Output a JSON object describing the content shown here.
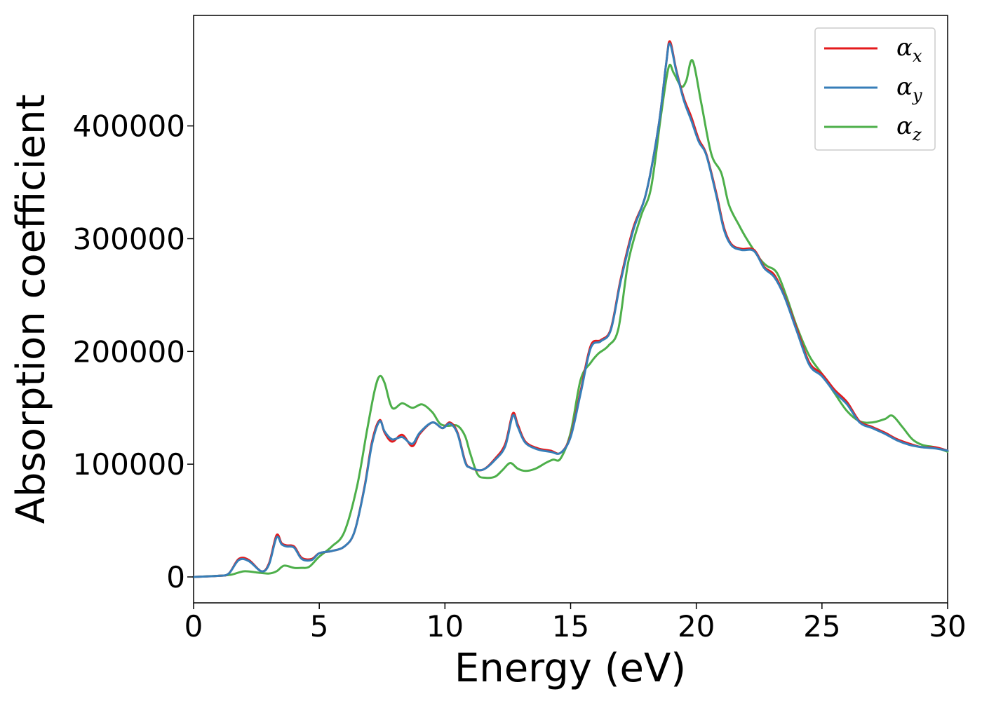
{
  "chart_data": {
    "type": "line",
    "xlabel": "Energy (eV)",
    "ylabel": "Absorption coefficient",
    "xlim": [
      0,
      30
    ],
    "ylim": [
      -23000,
      498000
    ],
    "xticks": [
      "0",
      "5",
      "10",
      "15",
      "20",
      "25",
      "30"
    ],
    "yticks": [
      "0",
      "100000",
      "200000",
      "300000",
      "400000"
    ],
    "grid": false,
    "legend_position": "top-right",
    "series": [
      {
        "name": "α",
        "subscript": "x",
        "color": "#e41a1c",
        "x": [
          0,
          1.0,
          1.4,
          1.8,
          2.2,
          2.7,
          3.0,
          3.3,
          3.5,
          3.7,
          4.0,
          4.3,
          4.7,
          5.0,
          5.5,
          6.0,
          6.4,
          6.8,
          7.1,
          7.4,
          7.6,
          7.9,
          8.3,
          8.7,
          9.0,
          9.5,
          9.9,
          10.2,
          10.5,
          10.8,
          11.0,
          11.5,
          12.0,
          12.4,
          12.7,
          12.9,
          13.2,
          13.7,
          14.2,
          14.6,
          15.0,
          15.4,
          15.8,
          16.2,
          16.6,
          17.0,
          17.5,
          18.0,
          18.5,
          18.8,
          18.95,
          19.2,
          19.5,
          19.8,
          20.1,
          20.4,
          20.8,
          21.1,
          21.4,
          21.8,
          22.3,
          22.7,
          23.1,
          23.5,
          24.0,
          24.5,
          25.0,
          25.5,
          26.0,
          26.5,
          27.0,
          27.5,
          28.0,
          28.5,
          29.0,
          29.5,
          30.0
        ],
        "values": [
          0,
          1000,
          3000,
          16000,
          15000,
          5000,
          12000,
          37000,
          30000,
          28000,
          27000,
          17000,
          16000,
          21000,
          23000,
          27000,
          40000,
          80000,
          120000,
          139000,
          128000,
          120000,
          126000,
          116000,
          127000,
          137000,
          132000,
          137000,
          128000,
          103000,
          97000,
          95000,
          105000,
          118000,
          145000,
          135000,
          120000,
          114000,
          112000,
          110000,
          125000,
          165000,
          205000,
          210000,
          220000,
          265000,
          310000,
          340000,
          400000,
          455000,
          475000,
          450000,
          425000,
          408000,
          388000,
          375000,
          340000,
          310000,
          295000,
          291000,
          290000,
          275000,
          268000,
          250000,
          220000,
          190000,
          180000,
          166000,
          155000,
          138000,
          133000,
          128000,
          122000,
          118000,
          115000,
          115000,
          112000
        ]
      },
      {
        "name": "α",
        "subscript": "y",
        "color": "#377eb8",
        "x": [
          0,
          1.0,
          1.4,
          1.8,
          2.2,
          2.7,
          3.0,
          3.3,
          3.5,
          3.7,
          4.0,
          4.3,
          4.7,
          5.0,
          5.5,
          6.0,
          6.4,
          6.8,
          7.1,
          7.4,
          7.6,
          7.9,
          8.3,
          8.7,
          9.0,
          9.5,
          9.9,
          10.2,
          10.5,
          10.8,
          11.0,
          11.5,
          12.0,
          12.4,
          12.7,
          12.9,
          13.2,
          13.7,
          14.2,
          14.6,
          15.0,
          15.4,
          15.8,
          16.2,
          16.6,
          17.0,
          17.5,
          18.0,
          18.5,
          18.8,
          18.95,
          19.2,
          19.5,
          19.8,
          20.1,
          20.4,
          20.8,
          21.1,
          21.4,
          21.8,
          22.3,
          22.7,
          23.1,
          23.5,
          24.0,
          24.5,
          25.0,
          25.5,
          26.0,
          26.5,
          27.0,
          27.5,
          28.0,
          28.5,
          29.0,
          29.5,
          30.0
        ],
        "values": [
          0,
          1000,
          3000,
          15000,
          14000,
          5000,
          11000,
          35000,
          29000,
          27000,
          26000,
          16000,
          15000,
          21000,
          23000,
          27000,
          40000,
          79000,
          118000,
          138000,
          129000,
          122000,
          124000,
          118000,
          128000,
          137000,
          132000,
          136000,
          127000,
          102000,
          97000,
          95000,
          104000,
          116000,
          143000,
          133000,
          119000,
          113000,
          111000,
          110000,
          124000,
          163000,
          203000,
          209000,
          219000,
          263000,
          308000,
          340000,
          400000,
          455000,
          473000,
          449000,
          423000,
          405000,
          386000,
          374000,
          338000,
          308000,
          294000,
          290000,
          289000,
          274000,
          266000,
          249000,
          218000,
          188000,
          178000,
          164000,
          153000,
          137000,
          132000,
          127000,
          121000,
          117000,
          115000,
          114000,
          112000
        ]
      },
      {
        "name": "α",
        "subscript": "z",
        "color": "#4daf4a",
        "x": [
          0,
          1.0,
          1.5,
          2.0,
          2.5,
          3.0,
          3.3,
          3.6,
          4.0,
          4.3,
          4.6,
          5.0,
          5.5,
          6.0,
          6.5,
          6.9,
          7.2,
          7.4,
          7.6,
          7.9,
          8.3,
          8.7,
          9.1,
          9.5,
          9.8,
          10.1,
          10.5,
          10.8,
          11.0,
          11.3,
          11.6,
          12.0,
          12.3,
          12.6,
          12.9,
          13.2,
          13.6,
          14.0,
          14.3,
          14.6,
          15.0,
          15.4,
          15.8,
          16.1,
          16.5,
          16.9,
          17.3,
          17.8,
          18.2,
          18.6,
          18.9,
          19.1,
          19.4,
          19.6,
          19.85,
          20.2,
          20.6,
          21.0,
          21.3,
          21.7,
          22.0,
          22.5,
          22.8,
          23.2,
          23.6,
          24.0,
          24.5,
          25.0,
          25.5,
          26.0,
          26.5,
          27.0,
          27.5,
          27.8,
          28.2,
          28.6,
          29.0,
          29.5,
          30.0
        ],
        "values": [
          0,
          1000,
          2000,
          5000,
          4000,
          3000,
          5000,
          10000,
          8000,
          8000,
          9000,
          18000,
          27000,
          40000,
          80000,
          130000,
          165000,
          178000,
          172000,
          150000,
          154000,
          150000,
          153000,
          146000,
          136000,
          134000,
          134000,
          125000,
          110000,
          91000,
          88000,
          89000,
          95000,
          101000,
          96000,
          94000,
          96000,
          101000,
          104000,
          105000,
          128000,
          175000,
          190000,
          198000,
          205000,
          220000,
          280000,
          320000,
          345000,
          410000,
          452000,
          447000,
          435000,
          440000,
          458000,
          420000,
          375000,
          358000,
          330000,
          312000,
          300000,
          283000,
          276000,
          270000,
          248000,
          222000,
          196000,
          180000,
          163000,
          147000,
          138000,
          137000,
          140000,
          143000,
          133000,
          122000,
          117000,
          115000,
          111000
        ]
      }
    ]
  }
}
